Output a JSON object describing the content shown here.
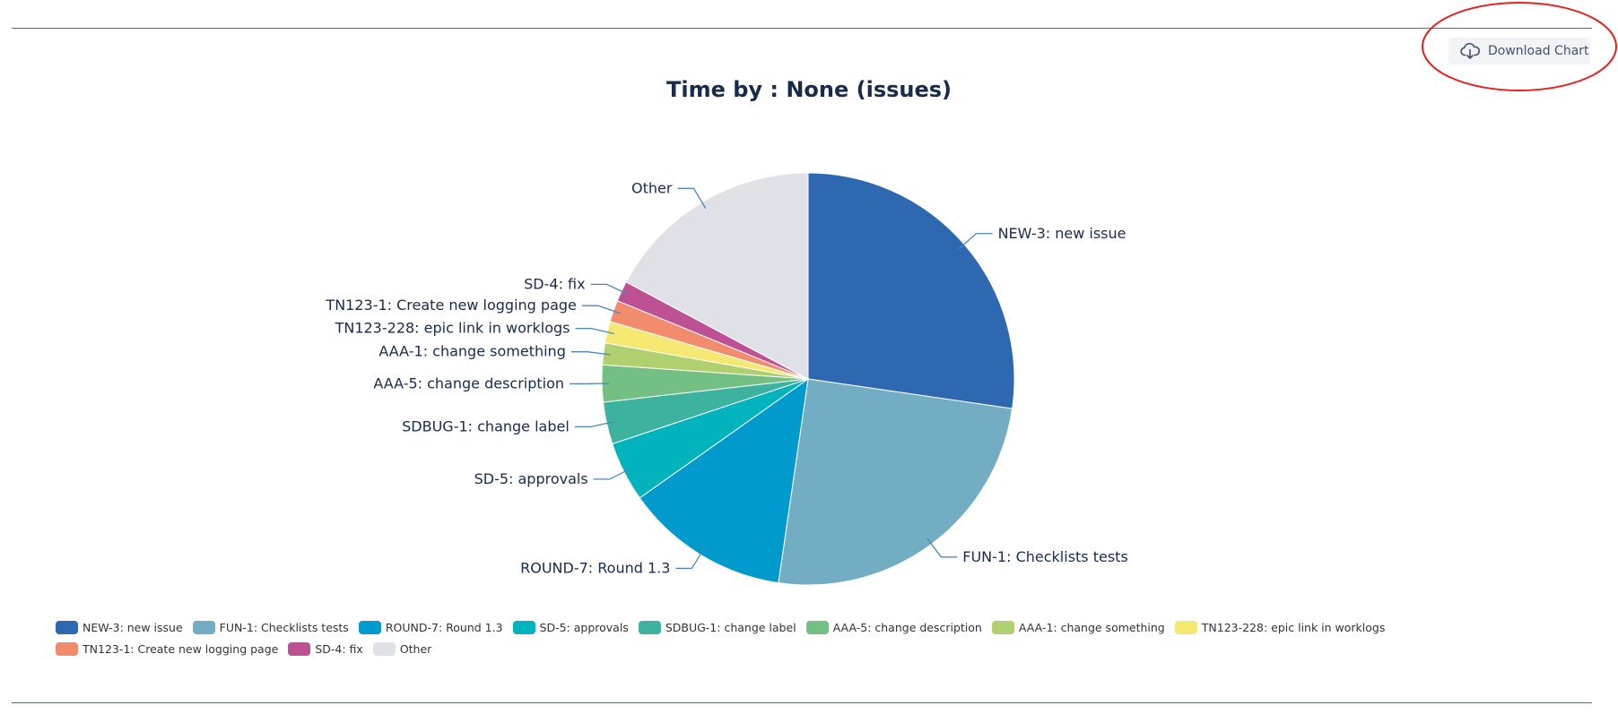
{
  "download": {
    "label": "Download Chart",
    "icon": "cloud-download-icon"
  },
  "annotation": {
    "color": "#e8201f",
    "shape": "ellipse",
    "target": "download-chart-button"
  },
  "chart_data": {
    "type": "pie",
    "title": "Time by : None (issues)",
    "legend_position": "bottom",
    "slices": [
      {
        "label": "NEW-3: new issue",
        "value": 27.3,
        "color": "#2e68b0"
      },
      {
        "label": "FUN-1: Checklists tests",
        "value": 25.0,
        "color": "#72adc4"
      },
      {
        "label": "ROUND-7: Round 1.3",
        "value": 12.9,
        "color": "#009bcc"
      },
      {
        "label": "SD-5: approvals",
        "value": 4.7,
        "color": "#00b3bc"
      },
      {
        "label": "SDBUG-1: change label",
        "value": 3.3,
        "color": "#3db39f"
      },
      {
        "label": "AAA-5: change description",
        "value": 2.9,
        "color": "#74bf84"
      },
      {
        "label": "AAA-1: change something",
        "value": 1.7,
        "color": "#b0cf6f"
      },
      {
        "label": "TN123-228: epic link in worklogs",
        "value": 1.7,
        "color": "#f5e872"
      },
      {
        "label": "TN123-1: Create new logging page",
        "value": 1.7,
        "color": "#f08b6e"
      },
      {
        "label": "SD-4: fix",
        "value": 1.6,
        "color": "#bd5193"
      },
      {
        "label": "Other",
        "value": 17.2,
        "color": "#dfe1e6"
      }
    ]
  }
}
